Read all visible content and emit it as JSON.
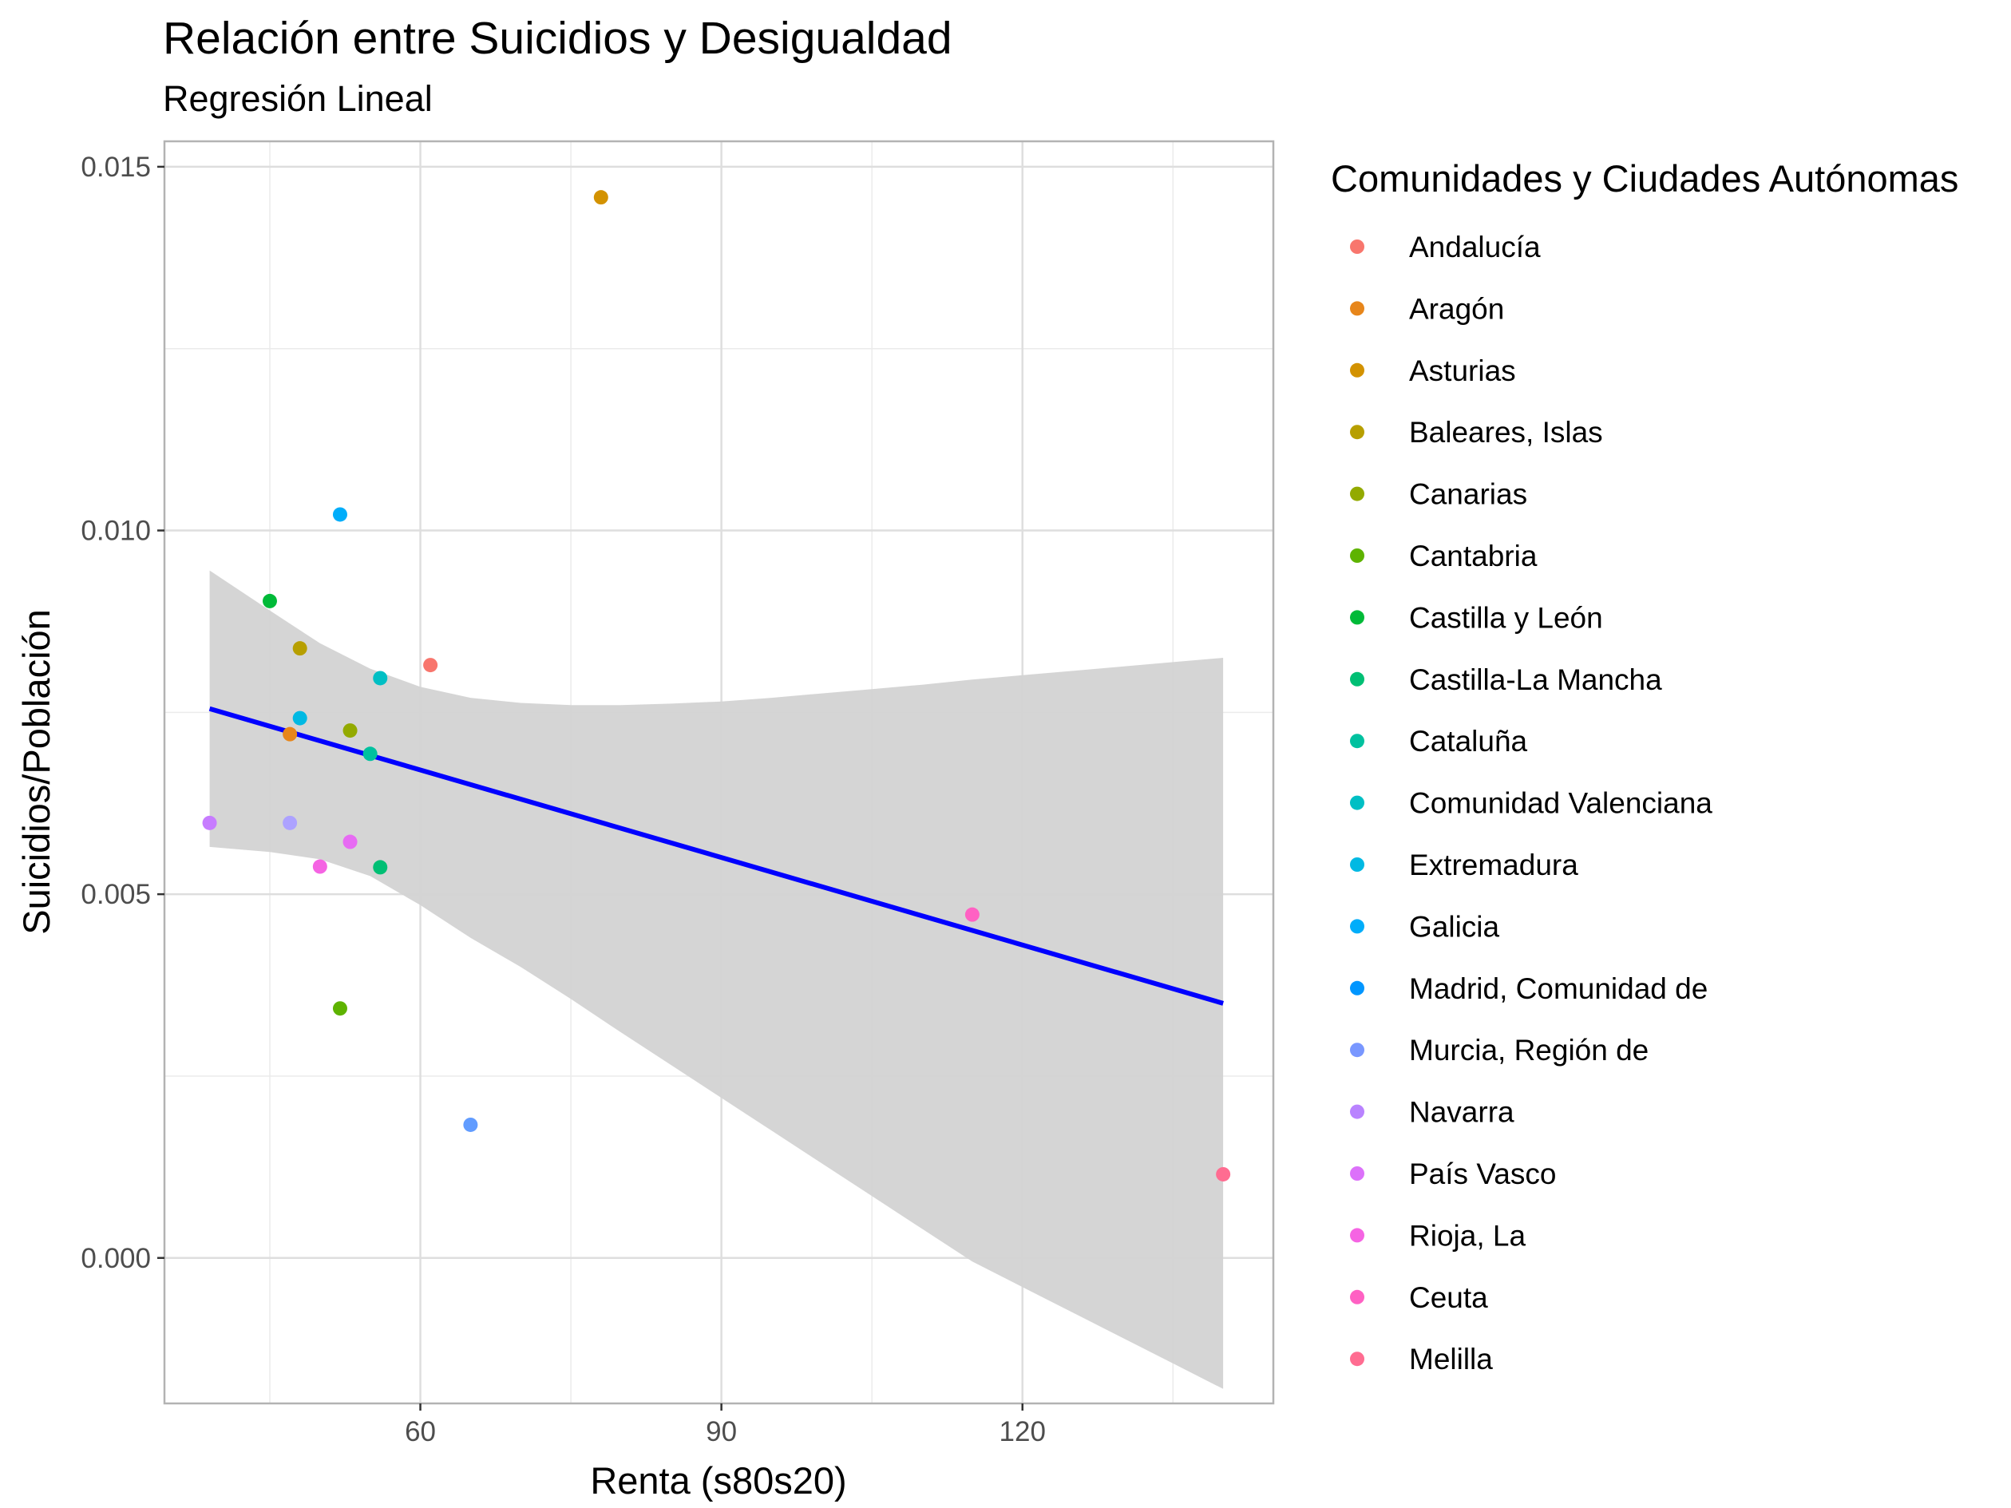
{
  "chart_data": {
    "type": "scatter",
    "title": "Relación entre Suicidios y Desigualdad",
    "subtitle": "Regresión Lineal",
    "xlabel": "Renta (s80s20)",
    "ylabel": "Suicidios/Población",
    "xlim": [
      34.5,
      145
    ],
    "ylim": [
      -0.002,
      0.01535
    ],
    "xticks": [
      60,
      90,
      120
    ],
    "xtick_labels": [
      "60",
      "90",
      "120"
    ],
    "yticks": [
      0.0,
      0.005,
      0.01,
      0.015
    ],
    "ytick_labels": [
      "0.000",
      "0.005",
      "0.010",
      "0.015"
    ],
    "grid": true,
    "legend_title": "Comunidades y Ciudades Autónomas",
    "legend_position": "right",
    "series": [
      {
        "name": "Andalucía",
        "color": "#F8766D",
        "x": 61,
        "y": 0.00815
      },
      {
        "name": "Aragón",
        "color": "#E7861B",
        "x": 47,
        "y": 0.0072
      },
      {
        "name": "Asturias",
        "color": "#D39200",
        "x": 78,
        "y": 0.01458
      },
      {
        "name": "Baleares, Islas",
        "color": "#B79F00",
        "x": 48,
        "y": 0.00838
      },
      {
        "name": "Canarias",
        "color": "#93AA00",
        "x": 53,
        "y": 0.00725
      },
      {
        "name": "Cantabria",
        "color": "#5EB300",
        "x": 52,
        "y": 0.00343
      },
      {
        "name": "Castilla y León",
        "color": "#00BA38",
        "x": 45,
        "y": 0.00903
      },
      {
        "name": "Castilla-La Mancha",
        "color": "#00BF74",
        "x": 56,
        "y": 0.00537
      },
      {
        "name": "Cataluña",
        "color": "#00C19F",
        "x": 55,
        "y": 0.00693
      },
      {
        "name": "Comunidad Valenciana",
        "color": "#00BFC4",
        "x": 56,
        "y": 0.00797
      },
      {
        "name": "Extremadura",
        "color": "#00B9E3",
        "x": 48,
        "y": 0.00742
      },
      {
        "name": "Galicia",
        "color": "#00ADFA",
        "x": 52,
        "y": 0.01022
      },
      {
        "name": "Madrid, Comunidad de",
        "color": "#619CFF",
        "x": 65,
        "y": 0.00183
      },
      {
        "name": "Murcia, Región de",
        "color": "#ADA2FF",
        "x": 47,
        "y": 0.00598
      },
      {
        "name": "Navarra",
        "color": "#C77CFF",
        "x": 39,
        "y": 0.00598
      },
      {
        "name": "País Vasco",
        "color": "#E76BF3",
        "x": 53,
        "y": 0.00572
      },
      {
        "name": "Rioja, La",
        "color": "#F564E3",
        "x": 50,
        "y": 0.00538
      },
      {
        "name": "Ceuta",
        "color": "#FF61C3",
        "x": 115,
        "y": 0.00472
      },
      {
        "name": "Melilla",
        "color": "#FF6C91",
        "x": 140,
        "y": 0.00115
      }
    ],
    "legend_colors": [
      "#F8766D",
      "#E7861B",
      "#D39200",
      "#B79F00",
      "#93AA00",
      "#5EB300",
      "#00BA38",
      "#00BF74",
      "#00C19F",
      "#00BFC4",
      "#00B9E3",
      "#00ADFA",
      "#0096FF",
      "#7997FF",
      "#B983FF",
      "#DC71FA",
      "#F564E3",
      "#FF61C3",
      "#FF6C91"
    ],
    "regression": {
      "color": "#0000FF",
      "x": [
        39,
        140
      ],
      "y": [
        0.00755,
        0.0035
      ]
    },
    "confidence_band": {
      "color": "#D3D3D3",
      "x": [
        39,
        45,
        50,
        55,
        60,
        65,
        70,
        75,
        80,
        85,
        90,
        95,
        100,
        105,
        110,
        115,
        120,
        125,
        130,
        135,
        140
      ],
      "upper": [
        0.00945,
        0.0089,
        0.00845,
        0.0081,
        0.00785,
        0.0077,
        0.00763,
        0.0076,
        0.0076,
        0.00762,
        0.00765,
        0.0077,
        0.00776,
        0.00782,
        0.00788,
        0.00795,
        0.00801,
        0.00807,
        0.00813,
        0.00819,
        0.00825
      ],
      "lower": [
        0.00565,
        0.00558,
        0.00548,
        0.00525,
        0.00485,
        0.0044,
        0.004,
        0.00356,
        0.0031,
        0.00265,
        0.0022,
        0.00175,
        0.0013,
        0.00085,
        0.0004,
        -5e-05,
        -0.0004,
        -0.00075,
        -0.0011,
        -0.00145,
        -0.0018
      ]
    }
  }
}
